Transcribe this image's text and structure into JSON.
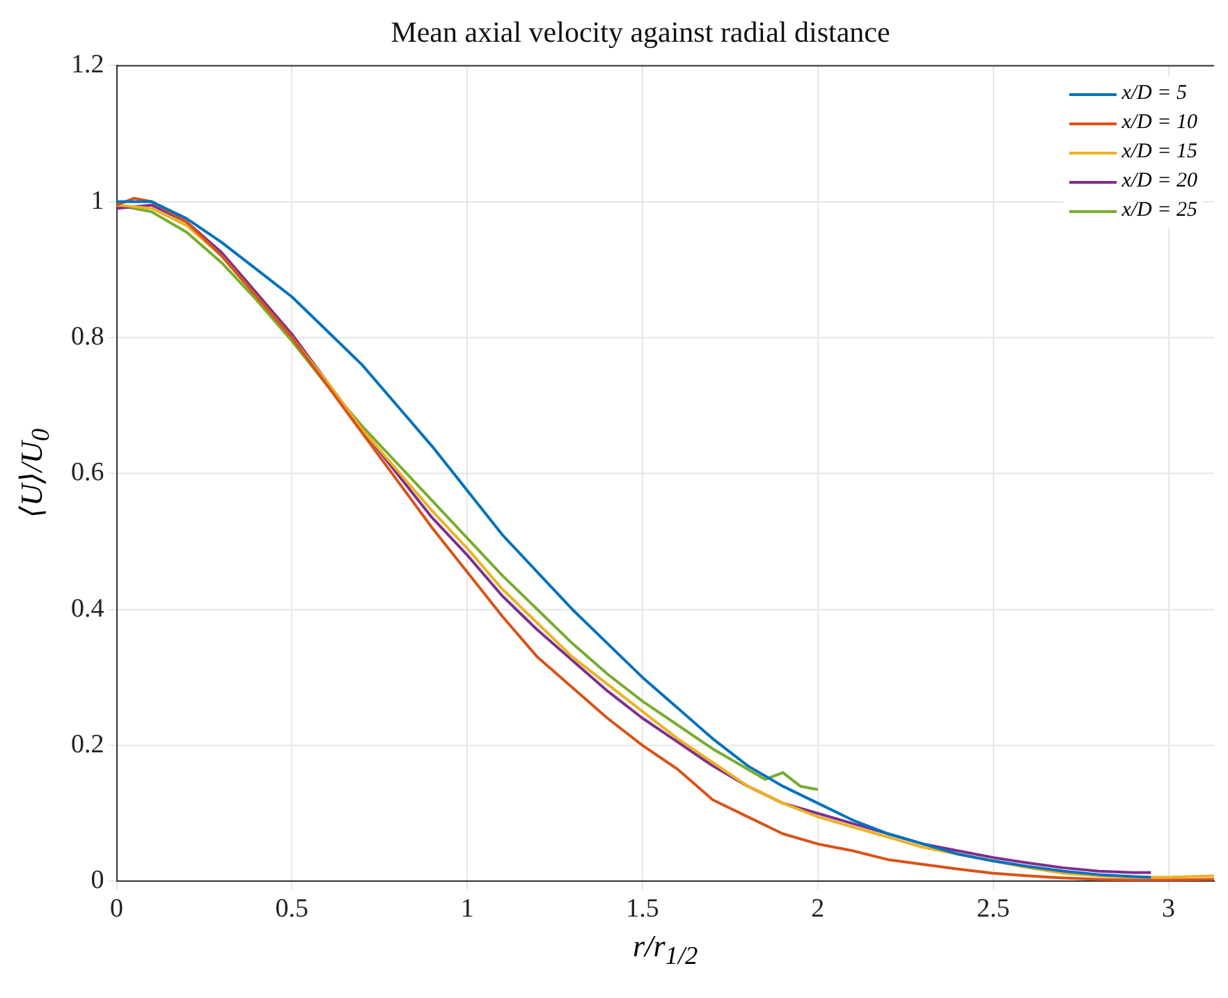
{
  "chart_data": {
    "type": "line",
    "title": "Mean axial velocity against radial distance",
    "xlabel": "r/r$_{1/2}$",
    "ylabel": "⟨U⟩/U$_{0}$",
    "xlim": [
      0,
      3.13
    ],
    "xticks": [
      0,
      0.5,
      1,
      1.5,
      2,
      2.5,
      3
    ],
    "ylim": [
      0,
      1.2
    ],
    "yticks": [
      0,
      0.2,
      0.4,
      0.6,
      0.8,
      1,
      1.2
    ],
    "grid": true,
    "legend": "top right",
    "marker": "none",
    "line_style": "solid",
    "series": [
      {
        "name": "x/D = 5",
        "color": "#0072bd",
        "x": [
          0,
          0.1,
          0.2,
          0.3,
          0.4,
          0.5,
          0.6,
          0.7,
          0.8,
          0.9,
          1.0,
          1.1,
          1.2,
          1.3,
          1.4,
          1.5,
          1.6,
          1.7,
          1.8,
          1.9,
          2.0,
          2.1,
          2.2,
          2.3,
          2.4,
          2.5,
          2.6,
          2.7,
          2.8,
          2.9,
          2.95
        ],
        "values": [
          1.0,
          1.0,
          0.975,
          0.94,
          0.9,
          0.86,
          0.81,
          0.76,
          0.7,
          0.64,
          0.575,
          0.51,
          0.455,
          0.4,
          0.35,
          0.3,
          0.255,
          0.21,
          0.17,
          0.14,
          0.115,
          0.09,
          0.07,
          0.055,
          0.04,
          0.03,
          0.022,
          0.015,
          0.01,
          0.007,
          0.006
        ]
      },
      {
        "name": "x/D = 10",
        "color": "#d95319",
        "x": [
          0,
          0.05,
          0.1,
          0.2,
          0.3,
          0.4,
          0.5,
          0.6,
          0.7,
          0.8,
          0.9,
          1.0,
          1.1,
          1.2,
          1.3,
          1.4,
          1.5,
          1.6,
          1.7,
          1.8,
          1.9,
          2.0,
          2.1,
          2.2,
          2.3,
          2.4,
          2.5,
          2.6,
          2.7,
          2.8,
          2.9,
          3.0,
          3.13
        ],
        "values": [
          0.995,
          1.005,
          1.0,
          0.97,
          0.92,
          0.86,
          0.8,
          0.73,
          0.66,
          0.59,
          0.52,
          0.455,
          0.39,
          0.33,
          0.285,
          0.24,
          0.2,
          0.165,
          0.12,
          0.095,
          0.07,
          0.055,
          0.045,
          0.032,
          0.025,
          0.018,
          0.012,
          0.008,
          0.005,
          0.003,
          0.002,
          0.002,
          0.003
        ]
      },
      {
        "name": "x/D = 15",
        "color": "#edb120",
        "x": [
          0,
          0.1,
          0.2,
          0.3,
          0.4,
          0.5,
          0.6,
          0.7,
          0.8,
          0.9,
          1.0,
          1.1,
          1.2,
          1.3,
          1.4,
          1.5,
          1.6,
          1.7,
          1.8,
          1.9,
          2.0,
          2.1,
          2.2,
          2.3,
          2.4,
          2.5,
          2.6,
          2.7,
          2.8,
          2.9,
          3.0,
          3.13
        ],
        "values": [
          0.995,
          0.99,
          0.965,
          0.92,
          0.86,
          0.8,
          0.735,
          0.665,
          0.605,
          0.545,
          0.49,
          0.43,
          0.38,
          0.33,
          0.29,
          0.25,
          0.21,
          0.175,
          0.14,
          0.115,
          0.095,
          0.08,
          0.065,
          0.05,
          0.04,
          0.03,
          0.02,
          0.012,
          0.008,
          0.006,
          0.006,
          0.008
        ]
      },
      {
        "name": "x/D = 20",
        "color": "#7e2f8e",
        "x": [
          0,
          0.1,
          0.2,
          0.3,
          0.4,
          0.5,
          0.6,
          0.7,
          0.8,
          0.9,
          1.0,
          1.1,
          1.2,
          1.3,
          1.4,
          1.5,
          1.6,
          1.7,
          1.8,
          1.9,
          2.0,
          2.1,
          2.2,
          2.3,
          2.4,
          2.5,
          2.6,
          2.7,
          2.8,
          2.9,
          2.95
        ],
        "values": [
          0.99,
          0.995,
          0.97,
          0.925,
          0.865,
          0.805,
          0.735,
          0.665,
          0.6,
          0.535,
          0.48,
          0.42,
          0.37,
          0.325,
          0.28,
          0.24,
          0.205,
          0.17,
          0.14,
          0.115,
          0.1,
          0.085,
          0.07,
          0.055,
          0.045,
          0.035,
          0.027,
          0.02,
          0.015,
          0.013,
          0.013
        ]
      },
      {
        "name": "x/D = 25",
        "color": "#77ac30",
        "x": [
          0,
          0.1,
          0.2,
          0.3,
          0.4,
          0.5,
          0.6,
          0.7,
          0.8,
          0.9,
          1.0,
          1.1,
          1.2,
          1.3,
          1.4,
          1.5,
          1.6,
          1.7,
          1.8,
          1.85,
          1.9,
          1.95,
          2.0
        ],
        "values": [
          0.995,
          0.985,
          0.955,
          0.91,
          0.855,
          0.795,
          0.73,
          0.67,
          0.615,
          0.56,
          0.505,
          0.45,
          0.4,
          0.35,
          0.305,
          0.265,
          0.23,
          0.195,
          0.165,
          0.15,
          0.16,
          0.14,
          0.135
        ]
      }
    ]
  }
}
